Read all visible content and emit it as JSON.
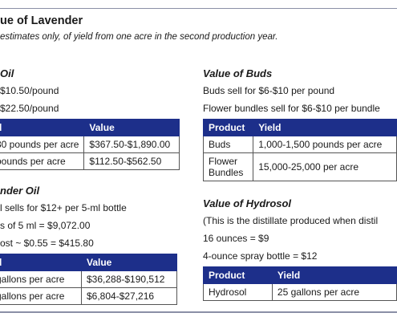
{
  "title": "ue of Lavender",
  "subtitle": "estimates only, of yield from one acre in the second production year.",
  "oil": {
    "heading": "Oil",
    "lines": [
      "$10.50/pound",
      "$22.50/pound"
    ],
    "headers": [
      "d",
      "Value"
    ],
    "rows": [
      [
        "30 pounds per acre",
        "$367.50-$1,890.00"
      ],
      [
        "pounds per acre",
        "$112.50-$562.50"
      ]
    ]
  },
  "buds": {
    "heading": "Value of Buds",
    "lines": [
      "Buds sell for $6-$10 per pound",
      "Flower bundles sell for $6-$10 per bundle"
    ],
    "headers": [
      "Product",
      "Yield"
    ],
    "rows": [
      [
        "Buds",
        "1,000-1,500 pounds per acre"
      ],
      [
        "Flower Bundles",
        "15,000-25,000 per acre"
      ]
    ]
  },
  "lavender_oil": {
    "heading": "nder Oil",
    "lines": [
      "l sells for $12+ per 5-ml bottle",
      "s of 5 ml = $9,072.00",
      "ost ~ $0.55 = $415.80"
    ],
    "headers": [
      "d",
      "Value"
    ],
    "rows": [
      [
        "gallons per acre",
        "$36,288-$190,512"
      ],
      [
        "gallons per acre",
        "$6,804-$27,216"
      ]
    ]
  },
  "hydrosol": {
    "heading": "Value of Hydrosol",
    "lines": [
      "(This is the distillate produced when distil",
      "16 ounces = $9",
      "4-ounce spray bottle = $12"
    ],
    "headers": [
      "Product",
      "Yield"
    ],
    "rows": [
      [
        "Hydrosol",
        "25 gallons per acre"
      ]
    ]
  }
}
